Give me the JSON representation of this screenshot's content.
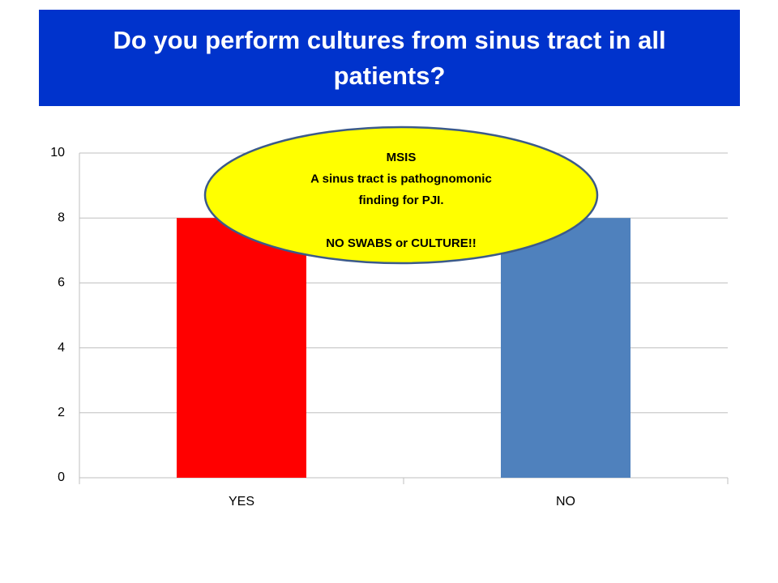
{
  "chart_data": {
    "type": "bar",
    "title": "Do you perform cultures from sinus tract in all patients?",
    "categories": [
      "YES",
      "NO"
    ],
    "values": [
      8,
      8
    ],
    "colors": [
      "#ff0000",
      "#4f81bd"
    ],
    "ylim": [
      0,
      10
    ],
    "yticks": [
      0,
      2,
      4,
      6,
      8,
      10
    ],
    "grid": true,
    "annotation": [
      "MSIS",
      "A sinus tract is pathognomonic",
      "finding for PJI.",
      "NO SWABS or CULTURE!!"
    ]
  }
}
